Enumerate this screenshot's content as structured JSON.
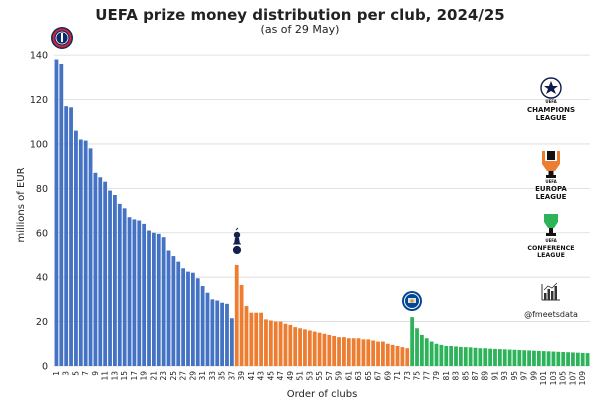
{
  "chart_data": {
    "type": "bar",
    "title": "UEFA prize money distribution per club, 2024/25",
    "subtitle": "(as of 29 May)",
    "xlabel": "Order of clubs",
    "ylabel": "millions of EUR",
    "ylim": [
      0,
      145
    ],
    "yticks": [
      0,
      20,
      40,
      60,
      80,
      100,
      120,
      140
    ],
    "x_tick_step": 2,
    "grid": true,
    "series": [
      {
        "competition": "Champions League",
        "color": "#4472c4",
        "start_rank": 1,
        "values": [
          138,
          136,
          117,
          116.5,
          106,
          102,
          101.5,
          98,
          87,
          85,
          83,
          79,
          77,
          73,
          71,
          67,
          66,
          65.5,
          64,
          61,
          60,
          59.5,
          58,
          52,
          49.5,
          47,
          44,
          42.5,
          42,
          39.5,
          36,
          33,
          30,
          29.5,
          28.5,
          28,
          21.5
        ]
      },
      {
        "competition": "Europa League",
        "color": "#ed7d31",
        "start_rank": 38,
        "values": [
          45.5,
          36.5,
          27,
          24,
          24,
          24,
          21,
          20.5,
          20,
          20,
          19,
          18.5,
          17.5,
          17,
          16.5,
          16,
          15.5,
          15,
          14.5,
          14,
          13.5,
          13,
          13,
          12.5,
          12.5,
          12.5,
          12,
          12,
          11.5,
          11,
          11,
          10,
          9.5,
          9,
          8.5,
          8
        ]
      },
      {
        "competition": "Conference League",
        "color": "#2db35a",
        "start_rank": 74,
        "values": [
          22,
          17,
          14,
          12.5,
          11,
          10,
          9.5,
          9,
          9,
          8.8,
          8.6,
          8.5,
          8.4,
          8.2,
          8,
          8,
          7.8,
          7.7,
          7.6,
          7.5,
          7.4,
          7.3,
          7.2,
          7.1,
          7,
          6.9,
          6.8,
          6.7,
          6.6,
          6.5,
          6.4,
          6.3,
          6.2,
          6.1,
          6,
          5.9,
          5.8
        ]
      }
    ],
    "highlighted_clubs": [
      {
        "rank": 1,
        "logo": "psg-crest"
      },
      {
        "rank": 38,
        "logo": "tottenham-crest"
      },
      {
        "rank": 74,
        "logo": "chelsea-crest"
      }
    ]
  },
  "legend": {
    "champions_league": {
      "line1": "CHAMPIONS",
      "line2": "LEAGUE",
      "small": "UEFA",
      "icon": "starball-icon"
    },
    "europa_league": {
      "line1": "EUROPA",
      "line2": "LEAGUE",
      "small": "UEFA",
      "icon": "europa-trophy-icon",
      "color": "#ed7d31"
    },
    "conference_league": {
      "line1": "CONFERENCE",
      "line2": "LEAGUE",
      "small": "UEFA",
      "icon": "conference-trophy-icon",
      "color": "#2db35a"
    }
  },
  "credit": {
    "handle": "@fmeetsdata",
    "icon": "bar-chart-icon"
  }
}
